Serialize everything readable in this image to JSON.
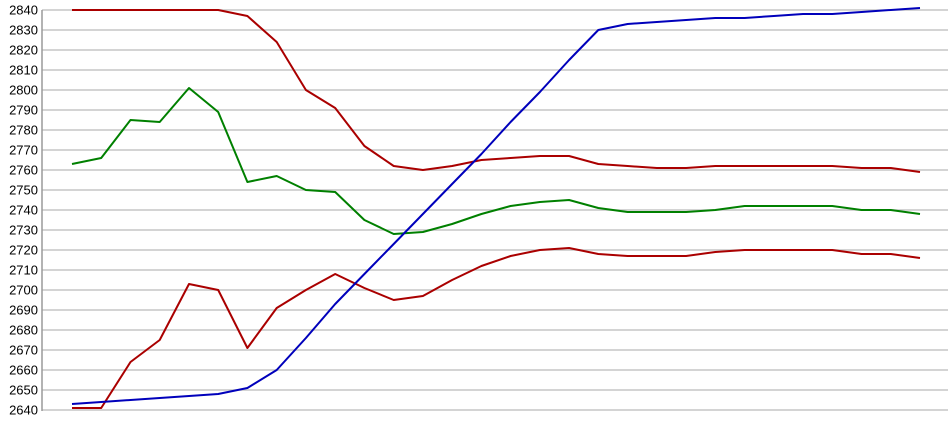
{
  "page": {
    "background_color": "#ffffff",
    "title": ""
  },
  "chart_data": {
    "type": "line",
    "title": "",
    "xlabel": "",
    "ylabel": "",
    "x_axis_labels_visible": false,
    "ylim": [
      2640,
      2840
    ],
    "y_tick_step": 10,
    "y_ticks": [
      2840,
      2830,
      2820,
      2810,
      2800,
      2790,
      2780,
      2770,
      2760,
      2750,
      2740,
      2730,
      2720,
      2710,
      2700,
      2690,
      2680,
      2670,
      2660,
      2650,
      2640
    ],
    "grid": "horizontal",
    "legend": "none",
    "n_points": 30,
    "colors": {
      "grid_color": "#c6c6c6",
      "axis_color": "#9a9a9a",
      "tick_label_color": "#000000",
      "dark_red": "#aa0000",
      "green": "#008000",
      "blue": "#0000bb"
    },
    "series": [
      {
        "name": "upper-dark-red",
        "color": "#aa0000",
        "values": [
          2840,
          2840,
          2840,
          2840,
          2840,
          2840,
          2837,
          2824,
          2800,
          2791,
          2772,
          2762,
          2760,
          2762,
          2765,
          2766,
          2767,
          2767,
          2763,
          2762,
          2761,
          2761,
          2762,
          2762,
          2762,
          2762,
          2762,
          2761,
          2761,
          2759
        ]
      },
      {
        "name": "green",
        "color": "#008000",
        "values": [
          2763,
          2766,
          2785,
          2784,
          2801,
          2789,
          2754,
          2757,
          2750,
          2749,
          2735,
          2728,
          2729,
          2733,
          2738,
          2742,
          2744,
          2745,
          2741,
          2739,
          2739,
          2739,
          2740,
          2742,
          2742,
          2742,
          2742,
          2740,
          2740,
          2738
        ]
      },
      {
        "name": "lower-dark-red",
        "color": "#aa0000",
        "values": [
          2641,
          2641,
          2664,
          2675,
          2703,
          2700,
          2671,
          2691,
          2700,
          2708,
          2701,
          2695,
          2697,
          2705,
          2712,
          2717,
          2720,
          2721,
          2718,
          2717,
          2717,
          2717,
          2719,
          2720,
          2720,
          2720,
          2720,
          2718,
          2718,
          2716
        ]
      },
      {
        "name": "blue",
        "color": "#0000bb",
        "values": [
          2643,
          2644,
          2645,
          2646,
          2647,
          2648,
          2651,
          2660,
          2676,
          2693,
          2708,
          2723,
          2738,
          2753,
          2768,
          2784,
          2799,
          2815,
          2830,
          2833,
          2834,
          2835,
          2836,
          2836,
          2837,
          2838,
          2838,
          2839,
          2840,
          2841
        ]
      }
    ]
  }
}
